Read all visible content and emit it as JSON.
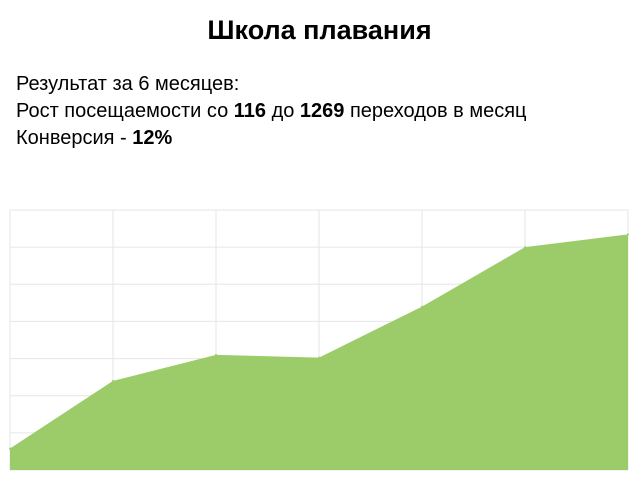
{
  "page": {
    "title": "Школа плавания"
  },
  "summary": {
    "line1": "Результат за 6 месяцев:",
    "line2_prefix": "Рост посещаемости со ",
    "visits_from": "116",
    "line2_middle": " до ",
    "visits_to": "1269",
    "line2_suffix": " переходов в месяц",
    "line3_prefix": "Конверсия - ",
    "conversion": "12%"
  },
  "chart_data": {
    "type": "area",
    "title": "",
    "xlabel": "",
    "ylabel": "",
    "x": [
      1,
      2,
      3,
      4,
      5,
      6,
      7
    ],
    "values": [
      116,
      480,
      620,
      605,
      880,
      1200,
      1269
    ],
    "ylim": [
      0,
      1400
    ],
    "grid": true,
    "legend": "none",
    "colors": {
      "fill": "#9ccc6a",
      "grid": "#e6e6e6",
      "background": "#ffffff"
    }
  }
}
